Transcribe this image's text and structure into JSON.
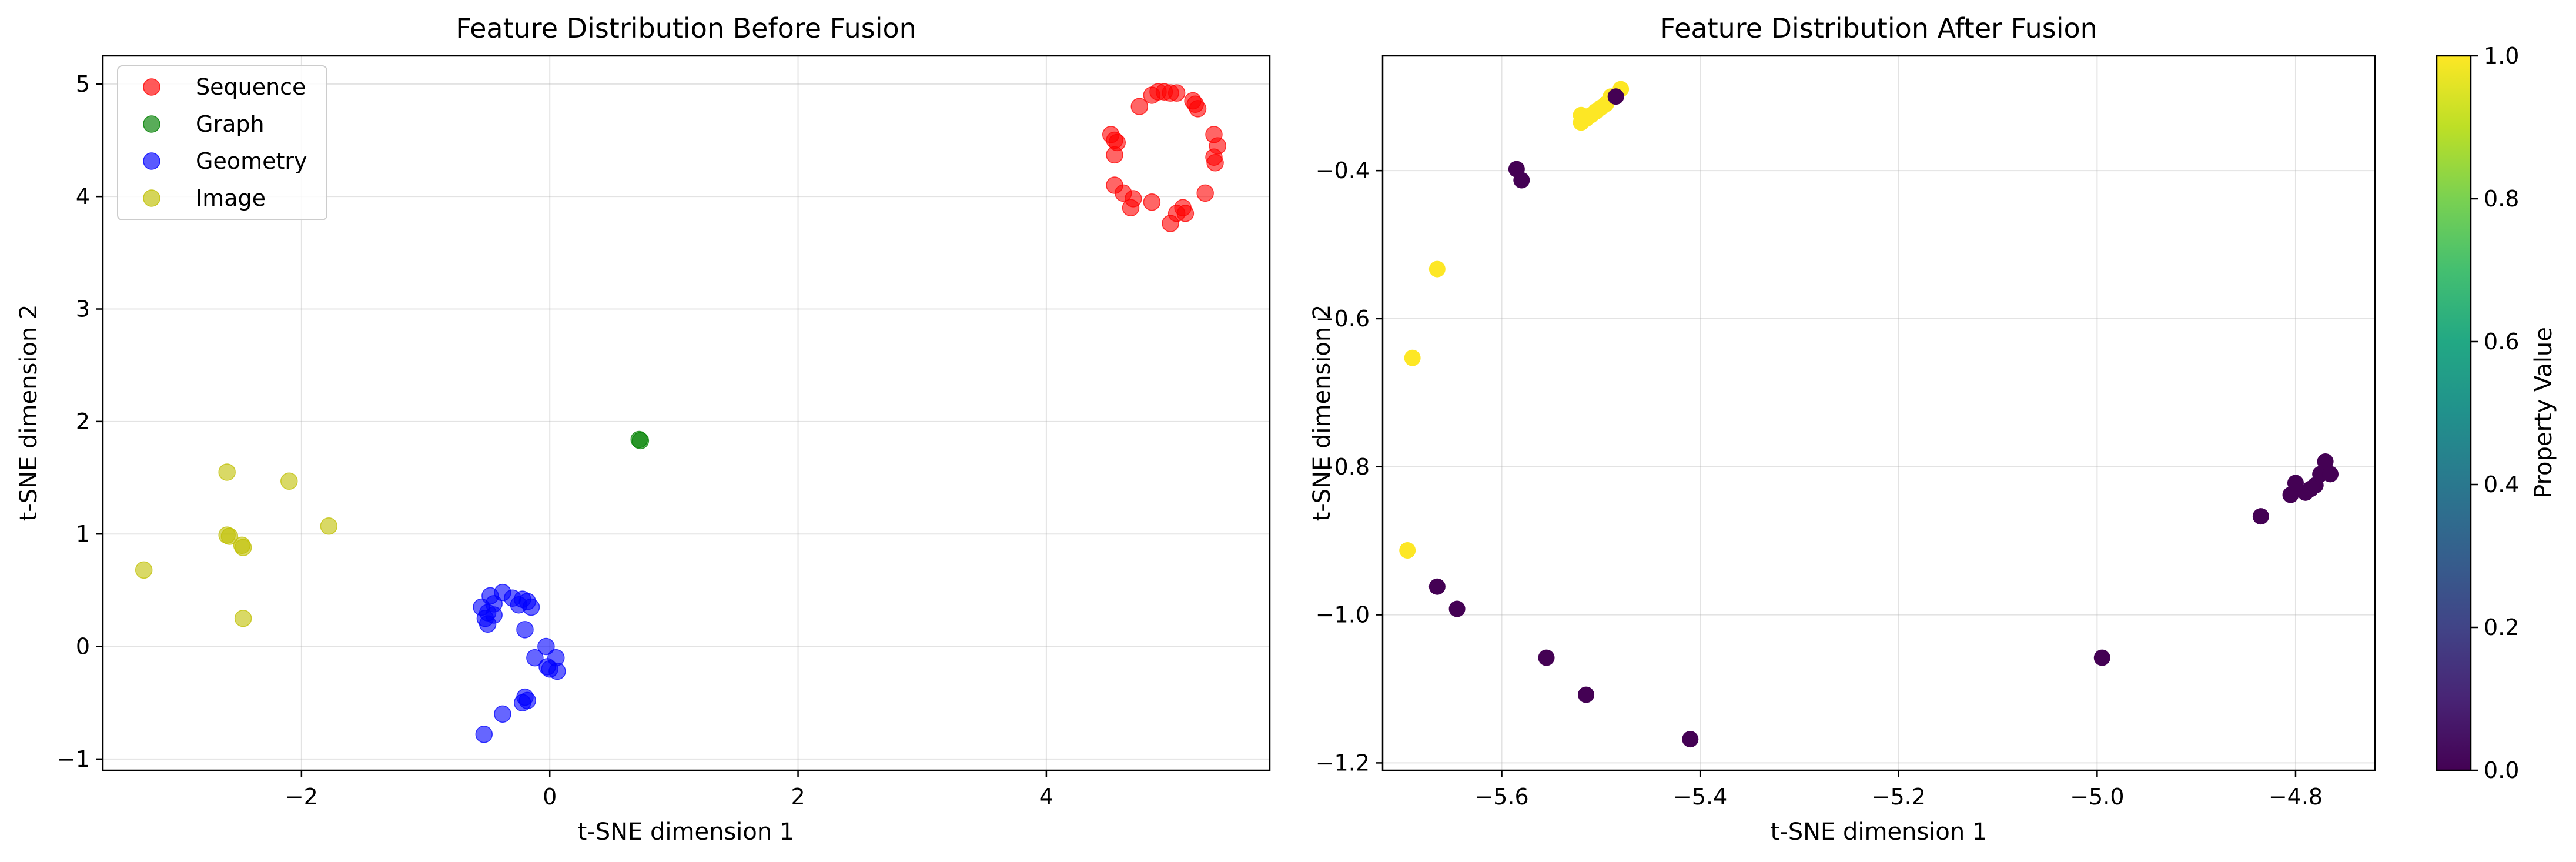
{
  "chart_data": [
    {
      "type": "scatter",
      "title": "Feature Distribution Before Fusion",
      "xlabel": "t-SNE dimension 1",
      "ylabel": "t-SNE dimension 2",
      "xlim": [
        -3.6,
        5.8
      ],
      "ylim": [
        -1.1,
        5.25
      ],
      "xticks": [
        -2,
        0,
        2,
        4
      ],
      "yticks": [
        -1,
        0,
        1,
        2,
        3,
        4,
        5
      ],
      "grid": true,
      "legend_position": "upper-left",
      "series": [
        {
          "name": "Sequence",
          "color": "#ff0000",
          "points": [
            [
              4.9,
              4.93
            ],
            [
              4.95,
              4.93
            ],
            [
              5.0,
              4.92
            ],
            [
              5.05,
              4.92
            ],
            [
              4.85,
              4.9
            ],
            [
              5.18,
              4.85
            ],
            [
              5.2,
              4.82
            ],
            [
              4.75,
              4.8
            ],
            [
              5.22,
              4.78
            ],
            [
              4.52,
              4.55
            ],
            [
              5.35,
              4.55
            ],
            [
              4.55,
              4.5
            ],
            [
              4.57,
              4.48
            ],
            [
              5.38,
              4.45
            ],
            [
              4.55,
              4.37
            ],
            [
              5.35,
              4.35
            ],
            [
              5.36,
              4.3
            ],
            [
              4.55,
              4.1
            ],
            [
              4.62,
              4.03
            ],
            [
              5.28,
              4.03
            ],
            [
              4.7,
              3.98
            ],
            [
              4.85,
              3.95
            ],
            [
              4.68,
              3.9
            ],
            [
              5.1,
              3.9
            ],
            [
              5.05,
              3.85
            ],
            [
              5.12,
              3.85
            ],
            [
              5.0,
              3.76
            ]
          ]
        },
        {
          "name": "Graph",
          "color": "#008000",
          "points": [
            [
              0.72,
              1.84
            ],
            [
              0.73,
              1.83
            ]
          ]
        },
        {
          "name": "Geometry",
          "color": "#0000ff",
          "points": [
            [
              -0.55,
              0.35
            ],
            [
              -0.48,
              0.45
            ],
            [
              -0.38,
              0.48
            ],
            [
              -0.3,
              0.43
            ],
            [
              -0.22,
              0.42
            ],
            [
              -0.25,
              0.37
            ],
            [
              -0.18,
              0.4
            ],
            [
              -0.15,
              0.35
            ],
            [
              -0.45,
              0.38
            ],
            [
              -0.5,
              0.3
            ],
            [
              -0.52,
              0.25
            ],
            [
              -0.45,
              0.28
            ],
            [
              -0.5,
              0.2
            ],
            [
              -0.2,
              0.15
            ],
            [
              -0.12,
              -0.1
            ],
            [
              -0.03,
              0.0
            ],
            [
              -0.02,
              -0.18
            ],
            [
              0.05,
              -0.1
            ],
            [
              0.0,
              -0.2
            ],
            [
              0.06,
              -0.22
            ],
            [
              -0.2,
              -0.45
            ],
            [
              -0.18,
              -0.48
            ],
            [
              -0.22,
              -0.5
            ],
            [
              -0.38,
              -0.6
            ],
            [
              -0.53,
              -0.78
            ]
          ]
        },
        {
          "name": "Image",
          "color": "#bfbf00",
          "points": [
            [
              -2.6,
              1.55
            ],
            [
              -2.1,
              1.47
            ],
            [
              -2.6,
              0.99
            ],
            [
              -2.58,
              0.98
            ],
            [
              -2.48,
              0.9
            ],
            [
              -2.47,
              0.88
            ],
            [
              -1.78,
              1.07
            ],
            [
              -3.27,
              0.68
            ],
            [
              -2.47,
              0.25
            ]
          ]
        }
      ]
    },
    {
      "type": "scatter",
      "title": "Feature Distribution After Fusion",
      "xlabel": "t-SNE dimension 1",
      "ylabel": "t-SNE dimension 2",
      "xlim": [
        -5.72,
        -4.72
      ],
      "ylim": [
        -1.21,
        -0.245
      ],
      "xticks": [
        -5.6,
        -5.4,
        -5.2,
        -5.0,
        -4.8
      ],
      "xtick_labels": [
        "−5.6",
        "−5.4",
        "−5.2",
        "−5.0",
        "−4.8"
      ],
      "yticks": [
        -1.2,
        -1.0,
        -0.8,
        -0.6,
        -0.4
      ],
      "ytick_labels": [
        "−1.2",
        "−1.0",
        "−0.8",
        "−0.6",
        "−0.4"
      ],
      "grid": true,
      "colorbar": {
        "label": "Property Value",
        "colormap": "viridis",
        "range": [
          0.0,
          1.0
        ],
        "ticks": [
          "0.0",
          "0.2",
          "0.4",
          "0.6",
          "0.8",
          "1.0"
        ]
      },
      "points": [
        {
          "x": -5.52,
          "y": -0.335,
          "value": 1
        },
        {
          "x": -5.515,
          "y": -0.33,
          "value": 1
        },
        {
          "x": -5.51,
          "y": -0.325,
          "value": 1
        },
        {
          "x": -5.52,
          "y": -0.325,
          "value": 1
        },
        {
          "x": -5.505,
          "y": -0.32,
          "value": 1
        },
        {
          "x": -5.5,
          "y": -0.315,
          "value": 1
        },
        {
          "x": -5.495,
          "y": -0.31,
          "value": 1
        },
        {
          "x": -5.49,
          "y": -0.3,
          "value": 1
        },
        {
          "x": -5.48,
          "y": -0.29,
          "value": 1
        },
        {
          "x": -5.485,
          "y": -0.3,
          "value": 0
        },
        {
          "x": -5.665,
          "y": -0.533,
          "value": 1
        },
        {
          "x": -5.69,
          "y": -0.653,
          "value": 1
        },
        {
          "x": -5.695,
          "y": -0.913,
          "value": 1
        },
        {
          "x": -5.585,
          "y": -0.398,
          "value": 0
        },
        {
          "x": -5.58,
          "y": -0.413,
          "value": 0
        },
        {
          "x": -5.665,
          "y": -0.962,
          "value": 0
        },
        {
          "x": -5.645,
          "y": -0.992,
          "value": 0
        },
        {
          "x": -5.555,
          "y": -1.058,
          "value": 0
        },
        {
          "x": -5.515,
          "y": -1.108,
          "value": 0
        },
        {
          "x": -5.41,
          "y": -1.168,
          "value": 0
        },
        {
          "x": -4.995,
          "y": -1.058,
          "value": 0
        },
        {
          "x": -4.835,
          "y": -0.867,
          "value": 0
        },
        {
          "x": -4.805,
          "y": -0.838,
          "value": 0
        },
        {
          "x": -4.8,
          "y": -0.822,
          "value": 0
        },
        {
          "x": -4.79,
          "y": -0.835,
          "value": 0
        },
        {
          "x": -4.785,
          "y": -0.83,
          "value": 0
        },
        {
          "x": -4.78,
          "y": -0.825,
          "value": 0
        },
        {
          "x": -4.775,
          "y": -0.81,
          "value": 0
        },
        {
          "x": -4.77,
          "y": -0.793,
          "value": 0
        },
        {
          "x": -4.765,
          "y": -0.81,
          "value": 0
        }
      ]
    }
  ]
}
